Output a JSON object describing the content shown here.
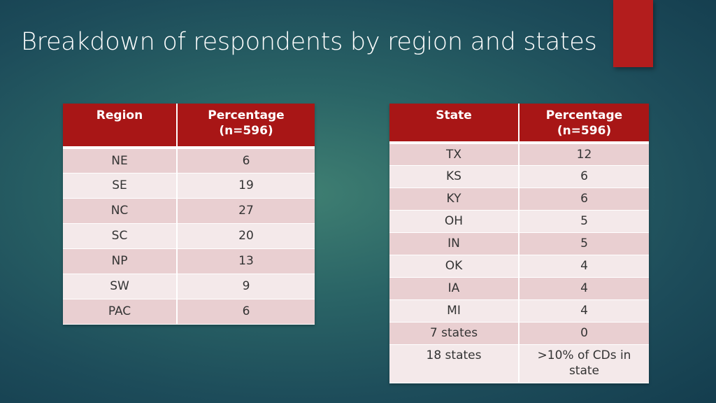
{
  "slide": {
    "title": "Breakdown of respondents by region and states"
  },
  "region_table": {
    "headers": [
      "Region",
      "Percentage",
      "(n=596)"
    ],
    "rows": [
      {
        "region": "NE",
        "percentage": "6"
      },
      {
        "region": "SE",
        "percentage": "19"
      },
      {
        "region": "NC",
        "percentage": "27"
      },
      {
        "region": "SC",
        "percentage": "20"
      },
      {
        "region": "NP",
        "percentage": "13"
      },
      {
        "region": "SW",
        "percentage": "9"
      },
      {
        "region": "PAC",
        "percentage": "6"
      }
    ]
  },
  "state_table": {
    "headers": [
      "State",
      "Percentage",
      "(n=596)"
    ],
    "rows": [
      {
        "state": "TX",
        "percentage": "12"
      },
      {
        "state": "KS",
        "percentage": "6"
      },
      {
        "state": "KY",
        "percentage": "6"
      },
      {
        "state": "OH",
        "percentage": "5"
      },
      {
        "state": "IN",
        "percentage": "5"
      },
      {
        "state": "OK",
        "percentage": "4"
      },
      {
        "state": "IA",
        "percentage": "4"
      },
      {
        "state": "MI",
        "percentage": "4"
      },
      {
        "state": "7 states",
        "percentage": "0"
      },
      {
        "state": "18 states",
        "percentage": ">10% of CDs in state"
      }
    ]
  },
  "colors": {
    "header_red": "#a81616",
    "accent_red": "#b31d1d",
    "row_dark": "#e9cfd1",
    "row_light": "#f4e9ea"
  }
}
